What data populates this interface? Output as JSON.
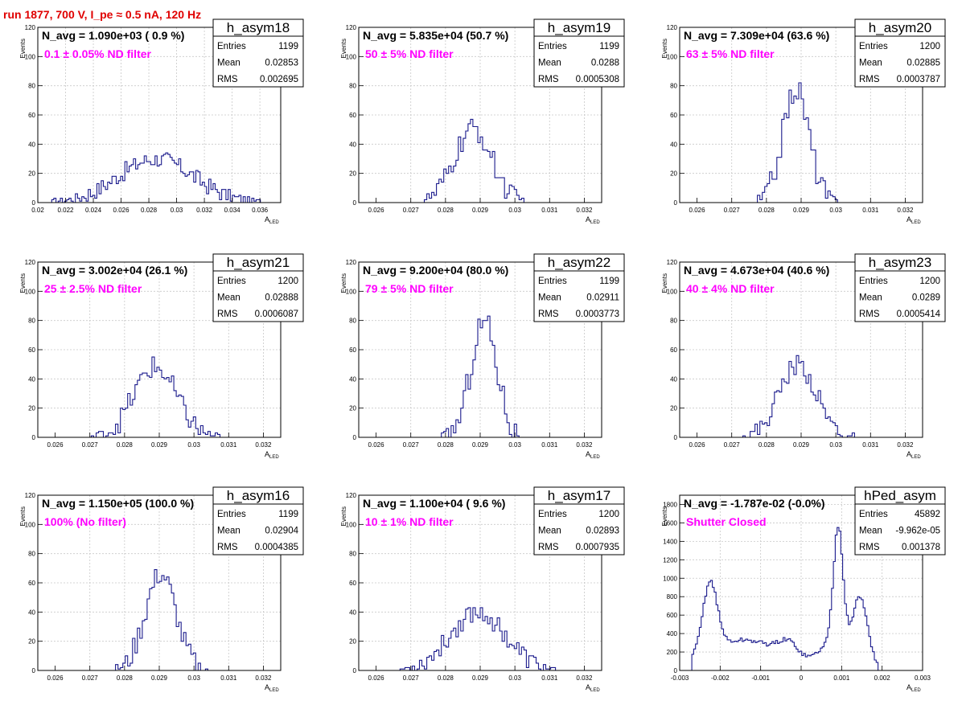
{
  "page": {
    "title": "run 1877,   700 V, I_pe ≈ 0.5 nA, 120 Hz"
  },
  "colors": {
    "hist": "#1a1a8c",
    "annotation": "#ff00ff",
    "title": "#e00000",
    "frame": "#000000"
  },
  "labels": {
    "entries": "Entries",
    "mean": "Mean",
    "rms": "RMS",
    "ylabel": "Events",
    "xlabel_main": "A",
    "xlabel_sub": "LED"
  },
  "chart_data": [
    {
      "type": "histogram",
      "name": "h_asym18",
      "navg": "N_avg = 1.090e+03 ( 0.9 %)",
      "filter": "0.1 ± 0.05% ND filter",
      "stats": {
        "entries": "1199",
        "mean": "0.02853",
        "rms": "0.002695"
      },
      "xlim": [
        0.02,
        0.0375
      ],
      "ylim": [
        0,
        120
      ],
      "xticks": [
        0.02,
        0.022,
        0.024,
        0.026,
        0.028,
        0.03,
        0.032,
        0.034,
        0.036
      ],
      "xtick_labels": [
        "0.02",
        "0.022",
        "0.024",
        "0.026",
        "0.028",
        "0.03",
        "0.032",
        "0.034",
        "0.036"
      ],
      "yticks": [
        0,
        20,
        40,
        60,
        80,
        100,
        120
      ],
      "ytick_labels": [
        "0",
        "20",
        "40",
        "60",
        "80",
        "100",
        "120"
      ],
      "center": 0.02853,
      "sigma": 0.0027,
      "peak": 30,
      "noise": 6,
      "bins": 100,
      "range": [
        0.021,
        0.0365
      ],
      "peaks": []
    },
    {
      "type": "histogram",
      "name": "h_asym19",
      "navg": "N_avg = 5.835e+04 (50.7 %)",
      "filter": "50 ± 5% ND filter",
      "stats": {
        "entries": "1199",
        "mean": "0.0288",
        "rms": "0.0005308"
      },
      "xlim": [
        0.0255,
        0.0325
      ],
      "ylim": [
        0,
        120
      ],
      "xticks": [
        0.026,
        0.027,
        0.028,
        0.029,
        0.03,
        0.031,
        0.032
      ],
      "xtick_labels": [
        "0.026",
        "0.027",
        "0.028",
        "0.029",
        "0.03",
        "0.031",
        "0.032"
      ],
      "yticks": [
        0,
        20,
        40,
        60,
        80,
        100,
        120
      ],
      "ytick_labels": [
        "0",
        "20",
        "40",
        "60",
        "80",
        "100",
        "120"
      ],
      "center": 0.0288,
      "sigma": 0.00053,
      "peak": 50,
      "noise": 8,
      "bins": 100,
      "range": [
        0.0255,
        0.0325
      ],
      "peaks": []
    },
    {
      "type": "histogram",
      "name": "h_asym20",
      "navg": "N_avg = 7.309e+04 (63.6 %)",
      "filter": "63 ± 5% ND filter",
      "stats": {
        "entries": "1200",
        "mean": "0.02885",
        "rms": "0.0003787"
      },
      "xlim": [
        0.0255,
        0.0325
      ],
      "ylim": [
        0,
        120
      ],
      "xticks": [
        0.026,
        0.027,
        0.028,
        0.029,
        0.03,
        0.031,
        0.032
      ],
      "xtick_labels": [
        "0.026",
        "0.027",
        "0.028",
        "0.029",
        "0.03",
        "0.031",
        "0.032"
      ],
      "yticks": [
        0,
        20,
        40,
        60,
        80,
        100,
        120
      ],
      "ytick_labels": [
        "0",
        "20",
        "40",
        "60",
        "80",
        "100",
        "120"
      ],
      "center": 0.02885,
      "sigma": 0.00038,
      "peak": 78,
      "noise": 9,
      "bins": 100,
      "range": [
        0.0255,
        0.0325
      ],
      "peaks": []
    },
    {
      "type": "histogram",
      "name": "h_asym21",
      "navg": "N_avg = 3.002e+04 (26.1 %)",
      "filter": "25 ± 2.5% ND filter",
      "stats": {
        "entries": "1200",
        "mean": "0.02888",
        "rms": "0.0006087"
      },
      "xlim": [
        0.0255,
        0.0325
      ],
      "ylim": [
        0,
        120
      ],
      "xticks": [
        0.026,
        0.027,
        0.028,
        0.029,
        0.03,
        0.031,
        0.032
      ],
      "xtick_labels": [
        "0.026",
        "0.027",
        "0.028",
        "0.029",
        "0.03",
        "0.031",
        "0.032"
      ],
      "yticks": [
        0,
        20,
        40,
        60,
        80,
        100,
        120
      ],
      "ytick_labels": [
        "0",
        "20",
        "40",
        "60",
        "80",
        "100",
        "120"
      ],
      "center": 0.02888,
      "sigma": 0.00061,
      "peak": 48,
      "noise": 8,
      "bins": 100,
      "range": [
        0.0255,
        0.0325
      ],
      "peaks": []
    },
    {
      "type": "histogram",
      "name": "h_asym22",
      "navg": "N_avg = 9.200e+04 (80.0 %)",
      "filter": "79 ± 5% ND filter",
      "stats": {
        "entries": "1199",
        "mean": "0.02911",
        "rms": "0.0003773"
      },
      "xlim": [
        0.0255,
        0.0325
      ],
      "ylim": [
        0,
        120
      ],
      "xticks": [
        0.026,
        0.027,
        0.028,
        0.029,
        0.03,
        0.031,
        0.032
      ],
      "xtick_labels": [
        "0.026",
        "0.027",
        "0.028",
        "0.029",
        "0.03",
        "0.031",
        "0.032"
      ],
      "yticks": [
        0,
        20,
        40,
        60,
        80,
        100,
        120
      ],
      "ytick_labels": [
        "0",
        "20",
        "40",
        "60",
        "80",
        "100",
        "120"
      ],
      "center": 0.02911,
      "sigma": 0.00038,
      "peak": 80,
      "noise": 10,
      "bins": 100,
      "range": [
        0.0255,
        0.0325
      ],
      "peaks": []
    },
    {
      "type": "histogram",
      "name": "h_asym23",
      "navg": "N_avg = 4.673e+04 (40.6 %)",
      "filter": "40 ± 4% ND filter",
      "stats": {
        "entries": "1200",
        "mean": "0.0289",
        "rms": "0.0005414"
      },
      "xlim": [
        0.0255,
        0.0325
      ],
      "ylim": [
        0,
        120
      ],
      "xticks": [
        0.026,
        0.027,
        0.028,
        0.029,
        0.03,
        0.031,
        0.032
      ],
      "xtick_labels": [
        "0.026",
        "0.027",
        "0.028",
        "0.029",
        "0.03",
        "0.031",
        "0.032"
      ],
      "yticks": [
        0,
        20,
        40,
        60,
        80,
        100,
        120
      ],
      "ytick_labels": [
        "0",
        "20",
        "40",
        "60",
        "80",
        "100",
        "120"
      ],
      "center": 0.0289,
      "sigma": 0.00054,
      "peak": 50,
      "noise": 7,
      "bins": 100,
      "range": [
        0.0255,
        0.0325
      ],
      "peaks": []
    },
    {
      "type": "histogram",
      "name": "h_asym16",
      "navg": "N_avg = 1.150e+05 (100.0 %)",
      "filter": "100% (No filter)",
      "stats": {
        "entries": "1199",
        "mean": "0.02904",
        "rms": "0.0004385"
      },
      "xlim": [
        0.0255,
        0.0325
      ],
      "ylim": [
        0,
        120
      ],
      "xticks": [
        0.026,
        0.027,
        0.028,
        0.029,
        0.03,
        0.031,
        0.032
      ],
      "xtick_labels": [
        "0.026",
        "0.027",
        "0.028",
        "0.029",
        "0.03",
        "0.031",
        "0.032"
      ],
      "yticks": [
        0,
        20,
        40,
        60,
        80,
        100,
        120
      ],
      "ytick_labels": [
        "0",
        "20",
        "40",
        "60",
        "80",
        "100",
        "120"
      ],
      "center": 0.02904,
      "sigma": 0.00044,
      "peak": 66,
      "noise": 8,
      "bins": 100,
      "range": [
        0.0255,
        0.0325
      ],
      "peaks": []
    },
    {
      "type": "histogram",
      "name": "h_asym17",
      "navg": "N_avg = 1.100e+04 ( 9.6 %)",
      "filter": "10 ± 1% ND filter",
      "stats": {
        "entries": "1200",
        "mean": "0.02893",
        "rms": "0.0007935"
      },
      "xlim": [
        0.0255,
        0.0325
      ],
      "ylim": [
        0,
        120
      ],
      "xticks": [
        0.026,
        0.027,
        0.028,
        0.029,
        0.03,
        0.031,
        0.032
      ],
      "xtick_labels": [
        "0.026",
        "0.027",
        "0.028",
        "0.029",
        "0.03",
        "0.031",
        "0.032"
      ],
      "yticks": [
        0,
        20,
        40,
        60,
        80,
        100,
        120
      ],
      "ytick_labels": [
        "0",
        "20",
        "40",
        "60",
        "80",
        "100",
        "120"
      ],
      "center": 0.02893,
      "sigma": 0.00079,
      "peak": 40,
      "noise": 7,
      "bins": 100,
      "range": [
        0.0255,
        0.0325
      ],
      "peaks": []
    },
    {
      "type": "histogram",
      "name": "hPed_asym",
      "navg": "N_avg = -1.787e-02 (-0.0%)",
      "filter": "Shutter Closed",
      "stats": {
        "entries": "45892",
        "mean": "-9.962e-05",
        "rms": "0.001378"
      },
      "xlim": [
        -0.003,
        0.003
      ],
      "ylim": [
        0,
        1900
      ],
      "xticks": [
        -0.003,
        -0.002,
        -0.001,
        0,
        0.001,
        0.002,
        0.003
      ],
      "xtick_labels": [
        "-0.003",
        "-0.002",
        "-0.001",
        "0",
        "0.001",
        "0.002",
        "0.003"
      ],
      "yticks": [
        0,
        200,
        400,
        600,
        800,
        1000,
        1200,
        1400,
        1600,
        1800
      ],
      "ytick_labels": [
        "0",
        "200",
        "400",
        "600",
        "800",
        "1000",
        "1200",
        "1400",
        "1600",
        "1800"
      ],
      "bins": 100,
      "range": [
        -0.0027,
        0.0019
      ],
      "noise": 25,
      "peaks": [
        {
          "c": -0.00225,
          "s": 0.00018,
          "h": 760
        },
        {
          "c": -0.0014,
          "s": 0.0009,
          "h": 330
        },
        {
          "c": -0.0003,
          "s": 0.00025,
          "h": 170
        },
        {
          "c": 0.00092,
          "s": 0.00012,
          "h": 1350
        },
        {
          "c": 0.00145,
          "s": 0.0002,
          "h": 780
        },
        {
          "c": 0.0007,
          "s": 0.0003,
          "h": 250
        }
      ]
    }
  ]
}
